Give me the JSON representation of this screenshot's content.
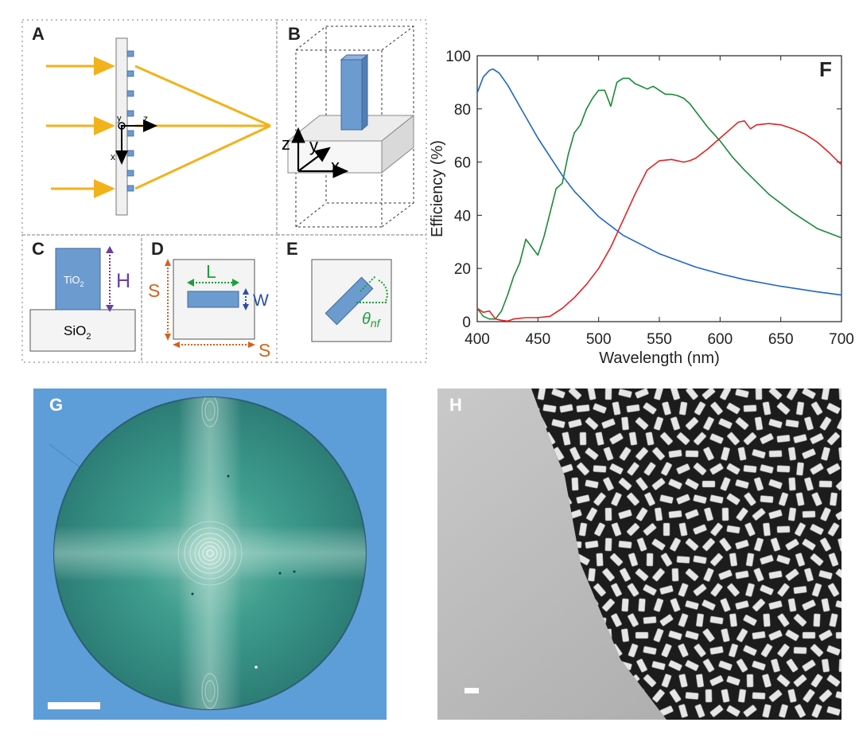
{
  "panels": {
    "A": {
      "label": "A",
      "axis_y": "y",
      "axis_z": "z",
      "axis_x": "x"
    },
    "B": {
      "label": "B",
      "axis_z": "z",
      "axis_y": "y",
      "axis_x": "x"
    },
    "C": {
      "label": "C",
      "pillar_text": "TiO",
      "pillar_sub": "2",
      "substrate_text": "SiO",
      "substrate_sub": "2",
      "height_label": "H"
    },
    "D": {
      "label": "D",
      "length_label": "L",
      "width_label": "W",
      "period_label_left": "S",
      "period_label_bottom": "S"
    },
    "E": {
      "label": "E",
      "angle_label": "θ",
      "angle_sub": "nf"
    },
    "F": {
      "label": "F"
    },
    "G": {
      "label": "G"
    },
    "H": {
      "label": "H"
    }
  },
  "colors": {
    "ray": "#f2b21b",
    "pillar": "#6c9bd0",
    "pillar_edge": "#3f6797",
    "green_dim": "#1f9e38",
    "purple_dim": "#6b3fa0",
    "orange_dim": "#d4621a",
    "blue_dim": "#2a4fa0",
    "blue_series": "#1f66c4",
    "green_series": "#1a8a3a",
    "red_series": "#e02424"
  },
  "chart_data": {
    "type": "line",
    "title": "",
    "xlabel": "Wavelength (nm)",
    "ylabel": "Efficiency (%)",
    "xlim": [
      400,
      700
    ],
    "ylim": [
      0,
      100
    ],
    "xticks": [
      400,
      450,
      500,
      550,
      600,
      650,
      700
    ],
    "yticks": [
      0,
      20,
      40,
      60,
      80,
      100
    ],
    "series": [
      {
        "name": "blue",
        "color": "#1f66c4",
        "x": [
          400,
          405,
          410,
          413,
          418,
          425,
          435,
          450,
          460,
          470,
          480,
          500,
          520,
          550,
          580,
          600,
          620,
          650,
          680,
          700
        ],
        "y": [
          86,
          92,
          94.5,
          95,
          93.5,
          89,
          81,
          69,
          62,
          55,
          49,
          39.5,
          32.5,
          25.5,
          20.5,
          18,
          15.8,
          13.3,
          11.2,
          10
        ]
      },
      {
        "name": "green",
        "color": "#1a8a3a",
        "x": [
          400,
          405,
          410,
          415,
          420,
          425,
          430,
          435,
          440,
          445,
          450,
          455,
          460,
          465,
          470,
          475,
          480,
          485,
          490,
          495,
          500,
          505,
          510,
          515,
          520,
          525,
          530,
          535,
          540,
          545,
          550,
          555,
          560,
          565,
          570,
          575,
          580,
          590,
          600,
          610,
          620,
          640,
          660,
          680,
          700
        ],
        "y": [
          5,
          2,
          1,
          1,
          4,
          10,
          17,
          22,
          31,
          28,
          25,
          32,
          41,
          50,
          52,
          63,
          71,
          74,
          80,
          84,
          87,
          87,
          81,
          90,
          91.5,
          91.5,
          89.5,
          88.5,
          87.5,
          88.5,
          87,
          85.5,
          85.5,
          85,
          84,
          82,
          79,
          73,
          68,
          62,
          57,
          48,
          41,
          35,
          31.5
        ]
      },
      {
        "name": "red",
        "color": "#e02424",
        "x": [
          400,
          405,
          410,
          415,
          420,
          425,
          430,
          440,
          450,
          460,
          470,
          480,
          490,
          500,
          510,
          520,
          530,
          540,
          550,
          560,
          570,
          575,
          580,
          590,
          600,
          610,
          615,
          620,
          625,
          630,
          640,
          650,
          660,
          670,
          680,
          690,
          700
        ],
        "y": [
          5,
          3.5,
          4,
          1,
          0.5,
          0.2,
          1,
          1.5,
          1.5,
          2,
          5,
          9,
          14,
          20,
          28,
          38,
          48,
          57,
          60.5,
          61,
          60,
          60.5,
          61.5,
          65,
          69,
          73,
          75,
          75.5,
          72.5,
          74,
          74.5,
          74,
          72.5,
          70.5,
          67.5,
          63.5,
          59
        ]
      }
    ]
  }
}
